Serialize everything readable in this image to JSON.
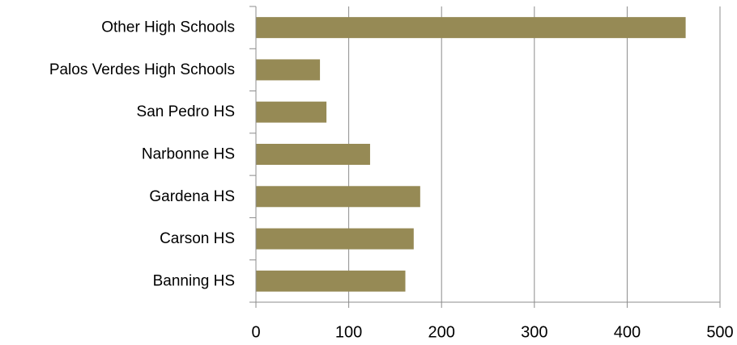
{
  "chart_data": {
    "type": "bar",
    "orientation": "horizontal",
    "categories": [
      "Other High Schools",
      "Palos Verdes High Schools",
      "San Pedro HS",
      "Narbonne HS",
      "Gardena HS",
      "Carson HS",
      "Banning HS"
    ],
    "values": [
      463,
      69,
      76,
      123,
      177,
      170,
      161
    ],
    "xlim": [
      0,
      500
    ],
    "xticks": [
      0,
      100,
      200,
      300,
      400,
      500
    ],
    "grid": "vertical",
    "legend": "none",
    "bar_color": "#968a55",
    "title": "",
    "xlabel": "",
    "ylabel": ""
  }
}
